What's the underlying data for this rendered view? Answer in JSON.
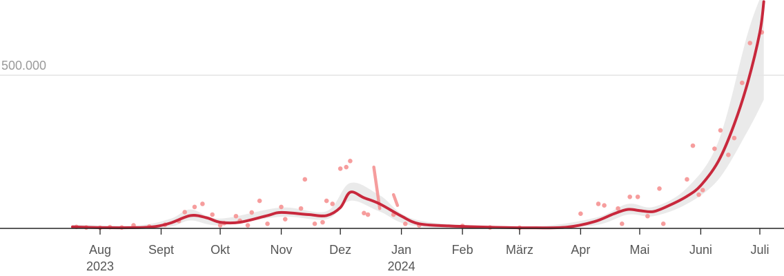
{
  "chart_data": {
    "type": "scatter",
    "title": "",
    "xlabel": "",
    "ylabel": "",
    "ylim": [
      0,
      700000
    ],
    "y_ticks": [
      {
        "value": 500000,
        "label": "500.000"
      }
    ],
    "x_ticks": [
      {
        "date": "2023-08-01",
        "label": "Aug",
        "sublabel": "2023"
      },
      {
        "date": "2023-09-01",
        "label": "Sept"
      },
      {
        "date": "2023-10-01",
        "label": "Okt"
      },
      {
        "date": "2023-11-01",
        "label": "Nov"
      },
      {
        "date": "2023-12-01",
        "label": "Dez"
      },
      {
        "date": "2024-01-01",
        "label": "Jan",
        "sublabel": "2024"
      },
      {
        "date": "2024-02-01",
        "label": "Feb"
      },
      {
        "date": "2024-03-01",
        "label": "März"
      },
      {
        "date": "2024-04-01",
        "label": "Apr"
      },
      {
        "date": "2024-05-01",
        "label": "Mai"
      },
      {
        "date": "2024-06-01",
        "label": "Juni"
      },
      {
        "date": "2024-07-01",
        "label": "Juli"
      }
    ],
    "grid": true,
    "colors": {
      "trend": "#c8283c",
      "points": "#f59898",
      "band": "#e6e6e6",
      "grid": "#dddddd",
      "axis": "#222222"
    },
    "trend": [
      {
        "x": "2023-07-18",
        "y": 5000
      },
      {
        "x": "2023-08-01",
        "y": 2500
      },
      {
        "x": "2023-08-20",
        "y": 2500
      },
      {
        "x": "2023-08-29",
        "y": 6000
      },
      {
        "x": "2023-09-06",
        "y": 18000
      },
      {
        "x": "2023-09-16",
        "y": 42000
      },
      {
        "x": "2023-09-24",
        "y": 35000
      },
      {
        "x": "2023-10-01",
        "y": 20000
      },
      {
        "x": "2023-10-11",
        "y": 20000
      },
      {
        "x": "2023-10-25",
        "y": 42000
      },
      {
        "x": "2023-11-01",
        "y": 52000
      },
      {
        "x": "2023-11-15",
        "y": 45000
      },
      {
        "x": "2023-11-24",
        "y": 42000
      },
      {
        "x": "2023-12-01",
        "y": 68000
      },
      {
        "x": "2023-12-06",
        "y": 118000
      },
      {
        "x": "2023-12-13",
        "y": 100000
      },
      {
        "x": "2023-12-21",
        "y": 80000
      },
      {
        "x": "2024-01-01",
        "y": 40000
      },
      {
        "x": "2024-01-10",
        "y": 15000
      },
      {
        "x": "2024-01-25",
        "y": 8000
      },
      {
        "x": "2024-02-15",
        "y": 4000
      },
      {
        "x": "2024-03-05",
        "y": 2000
      },
      {
        "x": "2024-03-25",
        "y": 4000
      },
      {
        "x": "2024-04-08",
        "y": 22000
      },
      {
        "x": "2024-04-18",
        "y": 48000
      },
      {
        "x": "2024-04-25",
        "y": 62000
      },
      {
        "x": "2024-05-01",
        "y": 58000
      },
      {
        "x": "2024-05-08",
        "y": 55000
      },
      {
        "x": "2024-05-16",
        "y": 75000
      },
      {
        "x": "2024-05-25",
        "y": 105000
      },
      {
        "x": "2024-06-01",
        "y": 140000
      },
      {
        "x": "2024-06-10",
        "y": 220000
      },
      {
        "x": "2024-06-18",
        "y": 340000
      },
      {
        "x": "2024-06-25",
        "y": 480000
      },
      {
        "x": "2024-07-01",
        "y": 640000
      },
      {
        "x": "2024-07-03",
        "y": 740000
      }
    ],
    "band": [
      {
        "x": "2023-07-18",
        "lo": 0,
        "hi": 12000
      },
      {
        "x": "2023-08-20",
        "lo": 0,
        "hi": 10000
      },
      {
        "x": "2023-09-06",
        "lo": 6000,
        "hi": 32000
      },
      {
        "x": "2023-09-16",
        "lo": 26000,
        "hi": 62000
      },
      {
        "x": "2023-10-01",
        "lo": 10000,
        "hi": 32000
      },
      {
        "x": "2023-11-01",
        "lo": 38000,
        "hi": 68000
      },
      {
        "x": "2023-11-24",
        "lo": 30000,
        "hi": 56000
      },
      {
        "x": "2023-12-06",
        "lo": 90000,
        "hi": 148000
      },
      {
        "x": "2023-12-21",
        "lo": 55000,
        "hi": 108000
      },
      {
        "x": "2024-01-10",
        "lo": 6000,
        "hi": 26000
      },
      {
        "x": "2024-03-05",
        "lo": 0,
        "hi": 6000
      },
      {
        "x": "2024-04-08",
        "lo": 10000,
        "hi": 34000
      },
      {
        "x": "2024-04-25",
        "lo": 45000,
        "hi": 80000
      },
      {
        "x": "2024-05-08",
        "lo": 40000,
        "hi": 70000
      },
      {
        "x": "2024-05-25",
        "lo": 80000,
        "hi": 132000
      },
      {
        "x": "2024-06-10",
        "lo": 160000,
        "hi": 285000
      },
      {
        "x": "2024-06-25",
        "lo": 320000,
        "hi": 640000
      },
      {
        "x": "2024-07-03",
        "lo": 420000,
        "hi": 780000
      }
    ],
    "points": [
      {
        "x": "2023-07-20",
        "y": 5000
      },
      {
        "x": "2023-07-25",
        "y": 3000
      },
      {
        "x": "2023-08-01",
        "y": 2000
      },
      {
        "x": "2023-08-06",
        "y": 4000
      },
      {
        "x": "2023-08-12",
        "y": 3000
      },
      {
        "x": "2023-08-18",
        "y": 10000
      },
      {
        "x": "2023-08-26",
        "y": 6000
      },
      {
        "x": "2023-09-03",
        "y": 12000
      },
      {
        "x": "2023-09-10",
        "y": 24000
      },
      {
        "x": "2023-09-13",
        "y": 53000
      },
      {
        "x": "2023-09-18",
        "y": 70000
      },
      {
        "x": "2023-09-22",
        "y": 80000
      },
      {
        "x": "2023-09-27",
        "y": 45000
      },
      {
        "x": "2023-10-01",
        "y": 10000
      },
      {
        "x": "2023-10-03",
        "y": 17000
      },
      {
        "x": "2023-10-09",
        "y": 40000
      },
      {
        "x": "2023-10-11",
        "y": 25000
      },
      {
        "x": "2023-10-15",
        "y": 10000
      },
      {
        "x": "2023-10-17",
        "y": 52000
      },
      {
        "x": "2023-10-21",
        "y": 90000
      },
      {
        "x": "2023-10-25",
        "y": 15000
      },
      {
        "x": "2023-11-01",
        "y": 70000
      },
      {
        "x": "2023-11-03",
        "y": 30000
      },
      {
        "x": "2023-11-11",
        "y": 65000
      },
      {
        "x": "2023-11-13",
        "y": 160000
      },
      {
        "x": "2023-11-18",
        "y": 15000
      },
      {
        "x": "2023-11-22",
        "y": 20000
      },
      {
        "x": "2023-11-24",
        "y": 90000
      },
      {
        "x": "2023-11-27",
        "y": 80000
      },
      {
        "x": "2023-12-01",
        "y": 195000
      },
      {
        "x": "2023-12-04",
        "y": 200000
      },
      {
        "x": "2023-12-06",
        "y": 220000
      },
      {
        "x": "2023-12-13",
        "y": 50000
      },
      {
        "x": "2023-12-15",
        "y": 45000
      },
      {
        "x": "2023-12-28",
        "y": 45000
      },
      {
        "x": "2024-01-03",
        "y": 15000
      },
      {
        "x": "2024-01-10",
        "y": 10000
      },
      {
        "x": "2024-02-01",
        "y": 8000
      },
      {
        "x": "2024-02-15",
        "y": 3000
      },
      {
        "x": "2024-03-01",
        "y": 2000
      },
      {
        "x": "2024-04-01",
        "y": 48000
      },
      {
        "x": "2024-04-10",
        "y": 80000
      },
      {
        "x": "2024-04-13",
        "y": 75000
      },
      {
        "x": "2024-04-20",
        "y": 65000
      },
      {
        "x": "2024-04-22",
        "y": 15000
      },
      {
        "x": "2024-04-26",
        "y": 103000
      },
      {
        "x": "2024-04-30",
        "y": 103000
      },
      {
        "x": "2024-05-05",
        "y": 40000
      },
      {
        "x": "2024-05-11",
        "y": 130000
      },
      {
        "x": "2024-05-13",
        "y": 15000
      },
      {
        "x": "2024-05-25",
        "y": 160000
      },
      {
        "x": "2024-05-28",
        "y": 270000
      },
      {
        "x": "2024-05-31",
        "y": 110000
      },
      {
        "x": "2024-06-02",
        "y": 125000
      },
      {
        "x": "2024-06-08",
        "y": 260000
      },
      {
        "x": "2024-06-11",
        "y": 320000
      },
      {
        "x": "2024-06-15",
        "y": 240000
      },
      {
        "x": "2024-06-18",
        "y": 295000
      },
      {
        "x": "2024-06-22",
        "y": 475000
      },
      {
        "x": "2024-06-26",
        "y": 605000
      },
      {
        "x": "2024-07-02",
        "y": 640000
      }
    ],
    "streaks": [
      [
        {
          "x": "2023-12-18",
          "y": 200000
        },
        {
          "x": "2023-12-21",
          "y": 65000
        }
      ],
      [
        {
          "x": "2023-12-28",
          "y": 110000
        },
        {
          "x": "2023-12-30",
          "y": 75000
        }
      ]
    ]
  }
}
